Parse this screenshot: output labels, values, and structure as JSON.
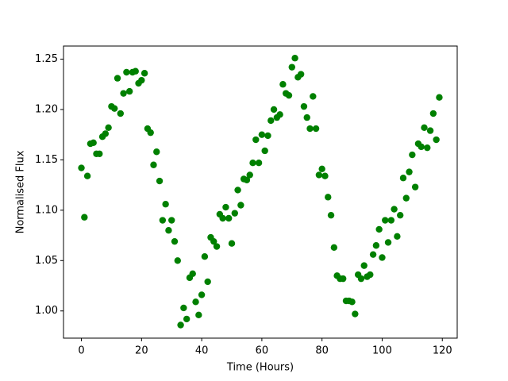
{
  "chart_data": {
    "type": "scatter",
    "xlabel": "Time (Hours)",
    "ylabel": "Normalised Flux",
    "color": "green",
    "x": [
      0,
      1,
      2,
      3,
      4,
      5,
      6,
      7,
      8,
      9,
      10,
      11,
      12,
      13,
      14,
      15,
      16,
      17,
      18,
      19,
      20,
      21,
      22,
      23,
      24,
      25,
      26,
      27,
      28,
      29,
      30,
      31,
      32,
      33,
      34,
      35,
      36,
      37,
      38,
      39,
      40,
      41,
      42,
      43,
      44,
      45,
      46,
      47,
      48,
      49,
      50,
      51,
      52,
      53,
      54,
      55,
      56,
      57,
      58,
      59,
      60,
      61,
      62,
      63,
      64,
      65,
      66,
      67,
      68,
      69,
      70,
      71,
      72,
      73,
      74,
      75,
      76,
      77,
      78,
      79,
      80,
      81,
      82,
      83,
      84,
      85,
      86,
      87,
      88,
      89,
      90,
      91,
      92,
      93,
      94,
      95,
      96,
      97,
      98,
      99,
      100,
      101,
      102,
      103,
      104,
      105,
      106,
      107,
      108,
      109,
      110,
      111,
      112,
      113,
      114,
      115,
      116,
      117,
      118,
      119
    ],
    "values": [
      1.142,
      1.093,
      1.134,
      1.166,
      1.167,
      1.156,
      1.156,
      1.173,
      1.176,
      1.182,
      1.203,
      1.201,
      1.231,
      1.196,
      1.216,
      1.237,
      1.218,
      1.237,
      1.238,
      1.226,
      1.229,
      1.236,
      1.181,
      1.177,
      1.145,
      1.158,
      1.129,
      1.09,
      1.106,
      1.08,
      1.09,
      1.069,
      1.05,
      0.986,
      1.003,
      0.992,
      1.033,
      1.037,
      1.009,
      0.996,
      1.016,
      1.054,
      1.029,
      1.073,
      1.069,
      1.064,
      1.096,
      1.092,
      1.103,
      1.092,
      1.067,
      1.097,
      1.12,
      1.105,
      1.131,
      1.13,
      1.135,
      1.147,
      1.17,
      1.147,
      1.175,
      1.159,
      1.174,
      1.189,
      1.2,
      1.192,
      1.195,
      1.225,
      1.216,
      1.214,
      1.242,
      1.251,
      1.232,
      1.235,
      1.203,
      1.192,
      1.181,
      1.213,
      1.181,
      1.135,
      1.141,
      1.134,
      1.113,
      1.095,
      1.063,
      1.035,
      1.032,
      1.032,
      1.01,
      1.01,
      1.009,
      0.997,
      1.036,
      1.032,
      1.045,
      1.034,
      1.036,
      1.056,
      1.065,
      1.081,
      1.053,
      1.09,
      1.068,
      1.09,
      1.101,
      1.074,
      1.095,
      1.132,
      1.112,
      1.138,
      1.155,
      1.123,
      1.166,
      1.163,
      1.182,
      1.162,
      1.179,
      1.196,
      1.17,
      1.212
    ],
    "xlim": [
      -5.95,
      124.95
    ],
    "ylim": [
      0.973,
      1.263
    ],
    "xticks": [
      0,
      20,
      40,
      60,
      80,
      100,
      120
    ],
    "yticks": [
      {
        "value": 1.0,
        "label": "1.00"
      },
      {
        "value": 1.05,
        "label": "1.05"
      },
      {
        "value": 1.1,
        "label": "1.10"
      },
      {
        "value": 1.15,
        "label": "1.15"
      },
      {
        "value": 1.2,
        "label": "1.20"
      },
      {
        "value": 1.25,
        "label": "1.25"
      }
    ]
  }
}
